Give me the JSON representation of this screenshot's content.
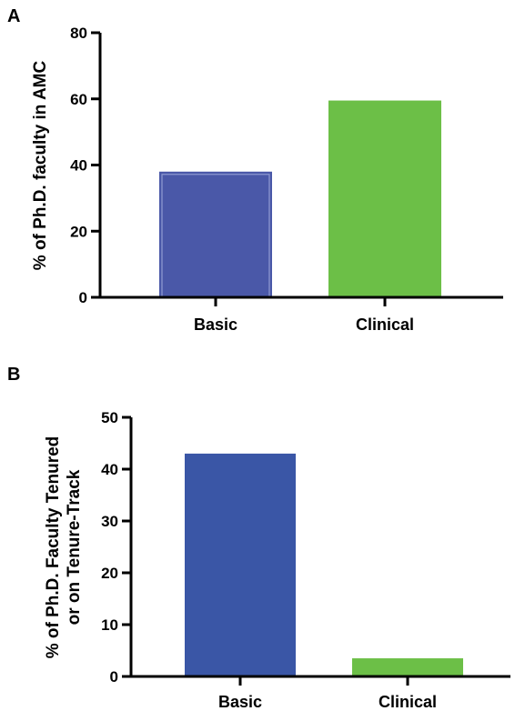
{
  "chart_data": [
    {
      "type": "bar",
      "panel": "A",
      "ylabel": "% of Ph.D. faculty in AMC",
      "categories": [
        "Basic",
        "Clinical"
      ],
      "values": [
        38,
        59.5
      ],
      "ylim": [
        0,
        80
      ],
      "yticks": [
        "0",
        "20",
        "40",
        "60",
        "80"
      ],
      "bar_colors": [
        "#4a58a8",
        "#6cbf47"
      ],
      "grid": false
    },
    {
      "type": "bar",
      "panel": "B",
      "ylabel_lines": [
        "% of Ph.D. Faculty Tenured",
        "or on Tenure-Track"
      ],
      "categories": [
        "Basic",
        "Clinical"
      ],
      "values": [
        43,
        3.5
      ],
      "ylim": [
        0,
        50
      ],
      "yticks": [
        "0",
        "10",
        "20",
        "30",
        "40",
        "50"
      ],
      "bar_colors": [
        "#3a56a6",
        "#6cbf47"
      ],
      "grid": false
    }
  ]
}
